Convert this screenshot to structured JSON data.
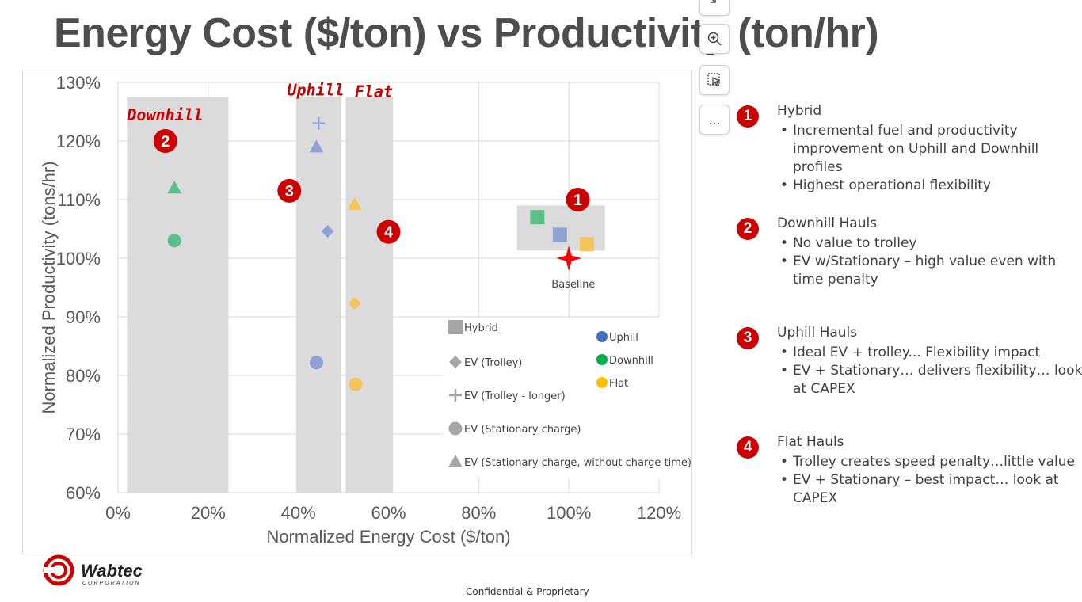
{
  "title": "Energy Cost ($/ton) vs Productivity (ton/hr)",
  "chart_data": {
    "type": "scatter",
    "xlabel": "Normalized Energy Cost ($/ton)",
    "ylabel": "Normalized Productivity (tons/hr)",
    "xlim": [
      0,
      120
    ],
    "ylim": [
      60,
      130
    ],
    "x_ticks": [
      "0%",
      "20%",
      "40%",
      "60%",
      "80%",
      "100%",
      "120%"
    ],
    "y_ticks": [
      "60%",
      "70%",
      "80%",
      "90%",
      "100%",
      "110%",
      "120%",
      "130%"
    ],
    "grid": true,
    "regions": [
      {
        "label": "Downhill",
        "x": [
          2,
          24.5
        ],
        "y": [
          60,
          127.5
        ]
      },
      {
        "label": "Uphill",
        "x": [
          39.5,
          49.5
        ],
        "y": [
          60,
          127.5
        ]
      },
      {
        "label": "Flat",
        "x": [
          50.5,
          61
        ],
        "y": [
          60,
          127.5
        ]
      },
      {
        "label": "",
        "x": [
          88.5,
          108
        ],
        "y": [
          101.3,
          109
        ]
      }
    ],
    "points": [
      {
        "x": 12.5,
        "y": 112,
        "shape": "triangle",
        "profile": "Downhill"
      },
      {
        "x": 12.5,
        "y": 103,
        "shape": "circle",
        "profile": "Downhill"
      },
      {
        "x": 44.5,
        "y": 123,
        "shape": "plus",
        "profile": "Uphill"
      },
      {
        "x": 44,
        "y": 119,
        "shape": "triangle",
        "profile": "Uphill"
      },
      {
        "x": 46.5,
        "y": 104.6,
        "shape": "diamond",
        "profile": "Uphill"
      },
      {
        "x": 44,
        "y": 82.2,
        "shape": "circle",
        "profile": "Uphill"
      },
      {
        "x": 52.5,
        "y": 109.2,
        "shape": "triangle",
        "profile": "Flat"
      },
      {
        "x": 52.5,
        "y": 92.3,
        "shape": "diamond",
        "profile": "Flat"
      },
      {
        "x": 52.7,
        "y": 78.5,
        "shape": "circle",
        "profile": "Flat"
      },
      {
        "x": 93,
        "y": 107,
        "shape": "square",
        "profile": "Downhill"
      },
      {
        "x": 98,
        "y": 104,
        "shape": "square",
        "profile": "Uphill"
      },
      {
        "x": 104,
        "y": 102.4,
        "shape": "square",
        "profile": "Flat"
      },
      {
        "x": 100,
        "y": 100,
        "shape": "star",
        "profile": "Baseline"
      }
    ],
    "annotations": [
      {
        "text": "Downhill",
        "x": 2,
        "y": 123.5,
        "style": "region-label"
      },
      {
        "text": "Uphill",
        "x": 37.5,
        "y": 127.8,
        "style": "region-label"
      },
      {
        "text": "Flat",
        "x": 52.5,
        "y": 127.5,
        "style": "region-label"
      },
      {
        "text": "Baseline",
        "x": 101,
        "y": 95,
        "style": "small"
      },
      {
        "text": "1",
        "x": 102,
        "y": 110,
        "style": "badge"
      },
      {
        "text": "2",
        "x": 10.5,
        "y": 120,
        "style": "badge"
      },
      {
        "text": "3",
        "x": 38,
        "y": 111.5,
        "style": "badge"
      },
      {
        "text": "4",
        "x": 60,
        "y": 104.5,
        "style": "badge"
      }
    ],
    "legend": {
      "placement": "bottom-right",
      "shapes": [
        {
          "symbol": "square",
          "label": "Hybrid"
        },
        {
          "symbol": "diamond",
          "label": "EV (Trolley)"
        },
        {
          "symbol": "plus",
          "label": "EV (Trolley - longer)"
        },
        {
          "symbol": "circle",
          "label": "EV (Stationary charge)"
        },
        {
          "symbol": "triangle",
          "label": "EV (Stationary charge, without charge time)"
        }
      ],
      "colors": [
        {
          "label": "Uphill",
          "color": "#4472c4"
        },
        {
          "label": "Downhill",
          "color": "#00b050"
        },
        {
          "label": "Flat",
          "color": "#ffc000"
        }
      ]
    },
    "profile_colors": {
      "Uphill": "#8fa2d4",
      "Downhill": "#5cc08a",
      "Flat": "#f2c65a",
      "Baseline": "#ff0000"
    }
  },
  "toolbar": {
    "icons": [
      "collapse-icon",
      "zoom-in-icon",
      "smart-select-icon",
      "more-icon"
    ],
    "more_label": "..."
  },
  "notes": [
    {
      "num": "1",
      "heading": "Hybrid",
      "bullets": [
        "Incremental fuel and productivity improvement on Uphill and Downhill profiles",
        "Highest operational flexibility"
      ]
    },
    {
      "num": "2",
      "heading": "Downhill Hauls",
      "bullets": [
        "No value to trolley",
        "EV w/Stationary – high value even with time penalty"
      ]
    },
    {
      "num": "3",
      "heading": "Uphill Hauls",
      "bullets": [
        "Ideal EV + trolley... Flexibility impact",
        "EV + Stationary… delivers flexibility… look at CAPEX"
      ]
    },
    {
      "num": "4",
      "heading": "Flat Hauls",
      "bullets": [
        "Trolley creates speed penalty…little value",
        "EV + Stationary – best impact… look at CAPEX"
      ]
    }
  ],
  "logo": {
    "name": "Wabtec",
    "sub": "CORPORATION"
  },
  "footer": "Confidential & Proprietary",
  "colors": {
    "title": "#4d4d4d",
    "accent_red": "#cc0000",
    "region_gray": "#d9d9d9"
  }
}
